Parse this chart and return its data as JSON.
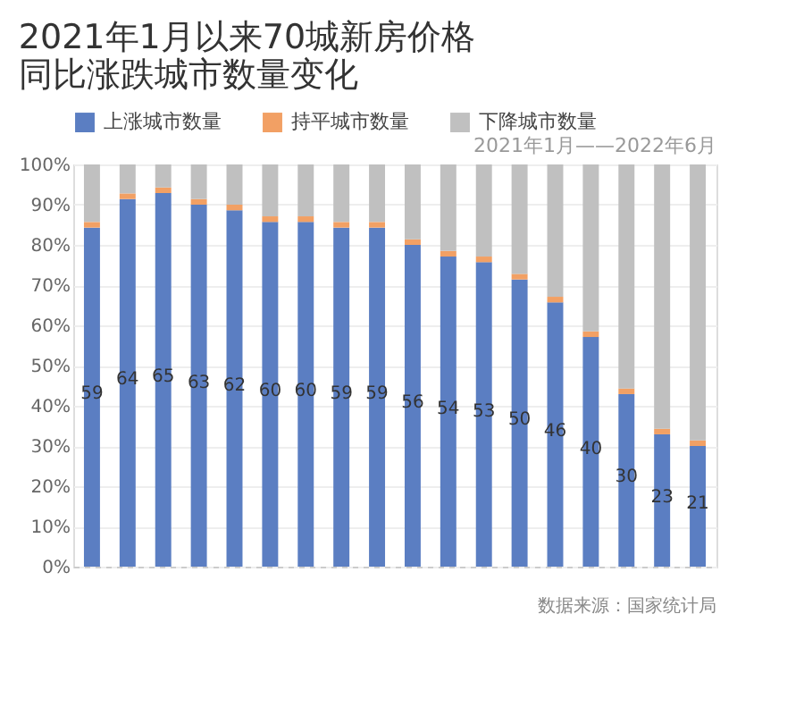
{
  "chart_data": {
    "type": "bar",
    "title": [
      "2021年1月以来70城新房价格",
      "同比涨跌城市数量变化"
    ],
    "subtitle": "2021年1月——2022年6月",
    "categories": [
      null,
      null,
      null,
      null,
      null,
      null,
      null,
      null,
      null,
      null,
      null,
      null,
      null,
      null,
      null,
      null,
      null,
      null
    ],
    "stacked": true,
    "series": [
      {
        "name": "上涨城市数量",
        "color": "#5b7ec2",
        "values": [
          84.3,
          91.4,
          92.9,
          90.0,
          88.6,
          85.7,
          85.7,
          84.3,
          84.3,
          80.0,
          77.1,
          75.7,
          71.4,
          65.7,
          57.1,
          42.9,
          32.9,
          30.0
        ]
      },
      {
        "name": "持平城市数量",
        "color": "#f2a064",
        "values": [
          1.4,
          1.4,
          1.4,
          1.4,
          1.4,
          1.4,
          1.4,
          1.4,
          1.4,
          1.4,
          1.4,
          1.4,
          1.4,
          1.4,
          1.4,
          1.4,
          1.4,
          1.4
        ]
      },
      {
        "name": "下降城市数量",
        "color": "#c0c0c0",
        "values": [
          14.3,
          7.2,
          5.7,
          8.6,
          10.0,
          12.9,
          12.9,
          14.3,
          14.3,
          18.6,
          21.5,
          22.9,
          27.2,
          32.9,
          41.5,
          55.7,
          65.7,
          68.6
        ]
      }
    ],
    "ylim": [
      0,
      100
    ],
    "yticks": [
      {
        "value": 0,
        "label": "0%"
      },
      {
        "value": 10,
        "label": "10%"
      },
      {
        "value": 20,
        "label": "20%"
      },
      {
        "value": 30,
        "label": "30%"
      },
      {
        "value": 40,
        "label": "40%"
      },
      {
        "value": 50,
        "label": "50%"
      },
      {
        "value": 60,
        "label": "60%"
      },
      {
        "value": 70,
        "label": "70%"
      },
      {
        "value": 80,
        "label": "80%"
      },
      {
        "value": 90,
        "label": "90%"
      },
      {
        "value": 100,
        "label": "100%"
      }
    ],
    "grid": "y",
    "legend": "top",
    "tick_labels": "y",
    "annotations": [
      "59",
      "64",
      "65",
      "63",
      "62",
      "60",
      "60",
      "59",
      "59",
      "56",
      "54",
      "53",
      "50",
      "46",
      "40",
      "30",
      "23",
      "21",
      "数据来源：国家统计局"
    ]
  }
}
